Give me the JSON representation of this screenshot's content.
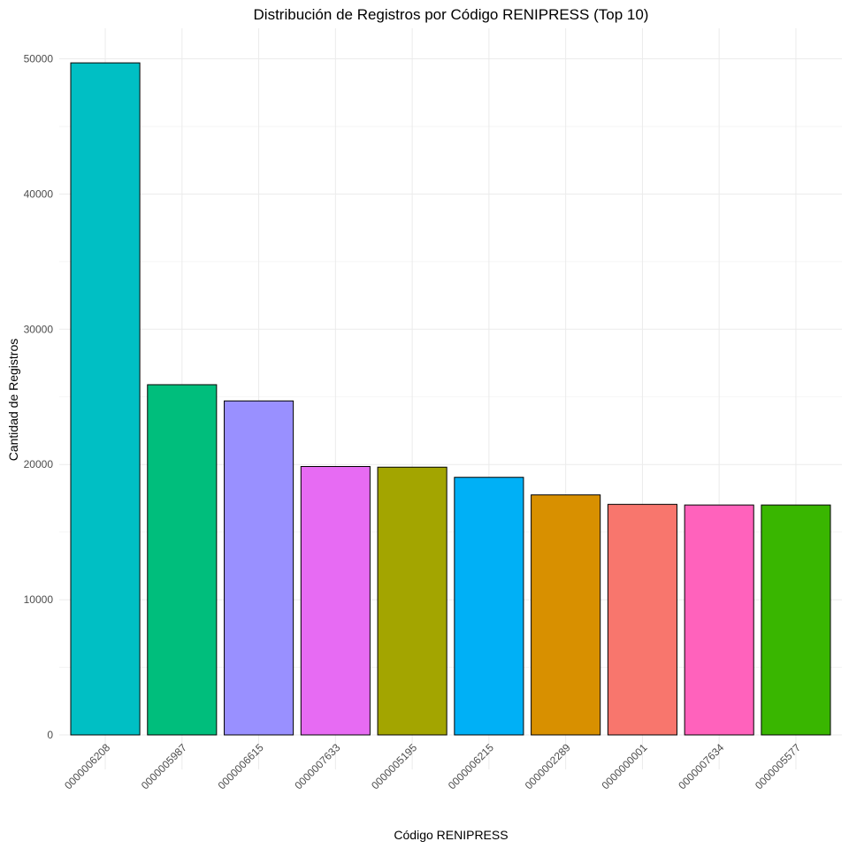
{
  "chart_data": {
    "type": "bar",
    "title": "Distribución de Registros por Código RENIPRESS (Top 10)",
    "xlabel": "Código RENIPRESS",
    "ylabel": "Cantidad de Registros",
    "categories": [
      "0000006208",
      "0000005987",
      "0000006615",
      "0000007633",
      "0000005195",
      "0000006215",
      "0000002289",
      "0000000001",
      "0000007634",
      "0000005577"
    ],
    "values": [
      49700,
      25900,
      24700,
      19850,
      19800,
      19050,
      17750,
      17050,
      17000,
      17000
    ],
    "colors": [
      "#00BFC4",
      "#00BE7C",
      "#9990FF",
      "#E76BF3",
      "#A3A500",
      "#00B0F6",
      "#D89000",
      "#F8766D",
      "#FF62BC",
      "#39B600"
    ],
    "ylim": [
      0,
      52500
    ],
    "yticks": [
      0,
      10000,
      20000,
      30000,
      40000,
      50000
    ],
    "ytick_labels": [
      "0",
      "10000",
      "20000",
      "30000",
      "40000",
      "50000"
    ],
    "grid": true,
    "legend": "none"
  }
}
